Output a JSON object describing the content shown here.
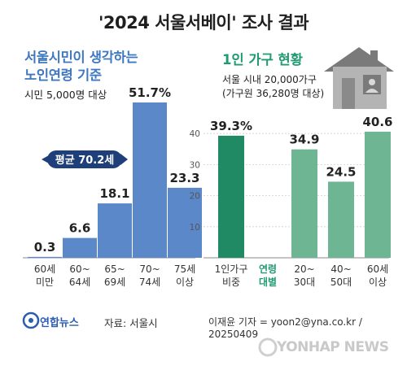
{
  "header": {
    "title": "'2024 서울서베이' 조사 결과"
  },
  "left_panel": {
    "title_line1": "서울시민이 생각하는",
    "title_line2": "노인연령 기준",
    "subtitle": "시민 5,000명 대상",
    "average_badge": "평균 70.2세"
  },
  "right_panel": {
    "title": "1인 가구 현황",
    "subtitle_line1": "서울 시내 20,000가구",
    "subtitle_line2": "(가구원 36,280명 대상)"
  },
  "footer": {
    "logo": "연합뉴스",
    "source": "자료: 서울시",
    "credit": "이재윤 기자 = yoon2@yna.co.kr / 20250409",
    "watermark": "YONHAP NEWS"
  },
  "colors": {
    "blue": "#5a88c8",
    "green_dark": "#1f8a63",
    "green": "#6db593",
    "title_blue": "#3f78c0",
    "title_green": "#1f9b70"
  },
  "chart_data": [
    {
      "type": "bar",
      "title": "서울시민이 생각하는 노인연령 기준",
      "categories": [
        [
          "60세",
          "미만"
        ],
        [
          "60~",
          "64세"
        ],
        [
          "65~",
          "69세"
        ],
        [
          "70~",
          "74세"
        ],
        [
          "75세",
          "이상"
        ]
      ],
      "values": [
        0.3,
        6.6,
        18.1,
        51.7,
        23.3
      ],
      "value_labels": [
        "0.3",
        "6.6",
        "18.1",
        "51.7%",
        "23.3"
      ],
      "unit": "%",
      "ylim": [
        0,
        51.7
      ]
    },
    {
      "type": "bar",
      "title": "1인 가구 현황",
      "categories": [
        [
          "1인가구",
          "비중"
        ],
        [
          "연령",
          "대별"
        ],
        [
          "20~",
          "30대"
        ],
        [
          "40~",
          "50대"
        ],
        [
          "60세",
          "이상"
        ]
      ],
      "values": [
        39.3,
        null,
        34.9,
        24.5,
        40.6
      ],
      "value_labels": [
        "39.3%",
        "",
        "34.9",
        "24.5",
        "40.6"
      ],
      "yticks": [
        "10",
        "20",
        "30",
        "40"
      ],
      "ylim": [
        0,
        50
      ]
    }
  ]
}
